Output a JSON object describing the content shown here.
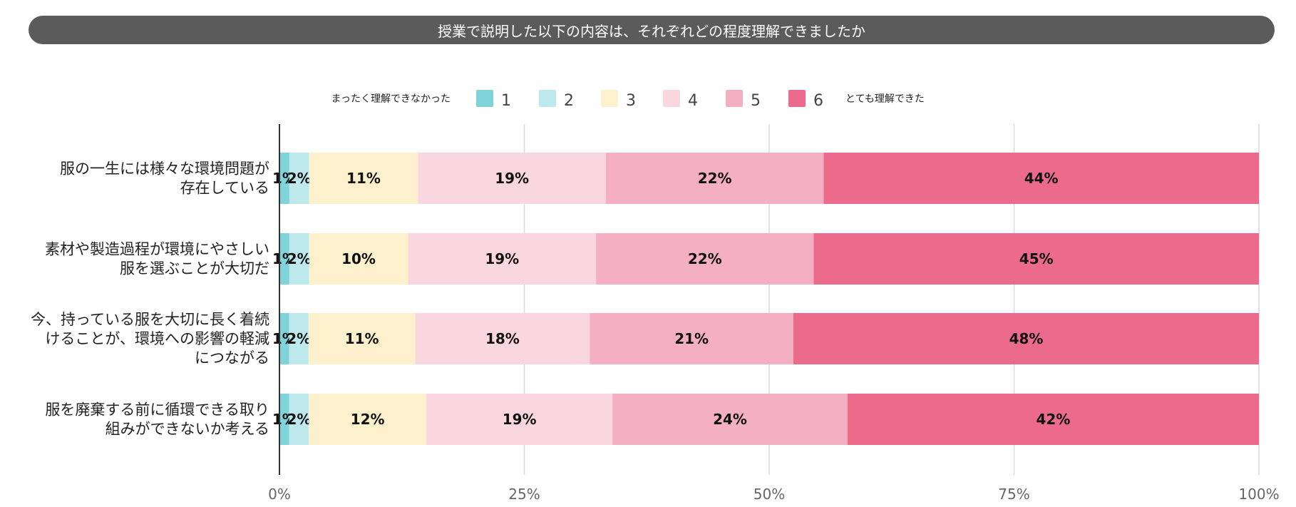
{
  "chart_data": {
    "type": "bar",
    "orientation": "horizontal",
    "stacked": true,
    "percent": true,
    "title": "授業で説明した以下の内容は、それぞれどの程度理解できましたか",
    "legend_left_text": "まったく理解できなかった",
    "legend_right_text": "とても理解できた",
    "legend_position": "top",
    "categories": [
      [
        "服の一生には様々な環境問題が",
        "存在している"
      ],
      [
        "素材や製造過程が環境にやさしい",
        "服を選ぶことが大切だ"
      ],
      [
        "今、持っている服を大切に長く着続",
        "けることが、環境への影響の軽減",
        "につながる"
      ],
      [
        "服を廃棄する前に循環できる取り",
        "組みができないか考える"
      ]
    ],
    "series": [
      {
        "name": "1",
        "color": "#7fd3d9",
        "values": [
          1,
          1,
          1,
          1
        ]
      },
      {
        "name": "2",
        "color": "#bde8ec",
        "values": [
          2,
          2,
          2,
          2
        ]
      },
      {
        "name": "3",
        "color": "#fdf0cc",
        "values": [
          11,
          10,
          11,
          12
        ]
      },
      {
        "name": "4",
        "color": "#f9d6e0",
        "values": [
          19,
          19,
          18,
          19
        ]
      },
      {
        "name": "5",
        "color": "#f5afc2",
        "values": [
          22,
          22,
          21,
          24
        ]
      },
      {
        "name": "6",
        "color": "#ec6a8c",
        "values": [
          44,
          45,
          48,
          42
        ]
      }
    ],
    "data_labels": [
      [
        "1%",
        "2%",
        "11%",
        "19%",
        "22%",
        "44%"
      ],
      [
        "1%",
        "2%",
        "10%",
        "19%",
        "22%",
        "45%"
      ],
      [
        "1%",
        "2%",
        "11%",
        "18%",
        "21%",
        "48%"
      ],
      [
        "1%",
        "2%",
        "12%",
        "19%",
        "24%",
        "42%"
      ]
    ],
    "xlim": [
      0,
      100
    ],
    "xticks": [
      "0%",
      "25%",
      "50%",
      "75%",
      "100%"
    ],
    "grid": true
  }
}
